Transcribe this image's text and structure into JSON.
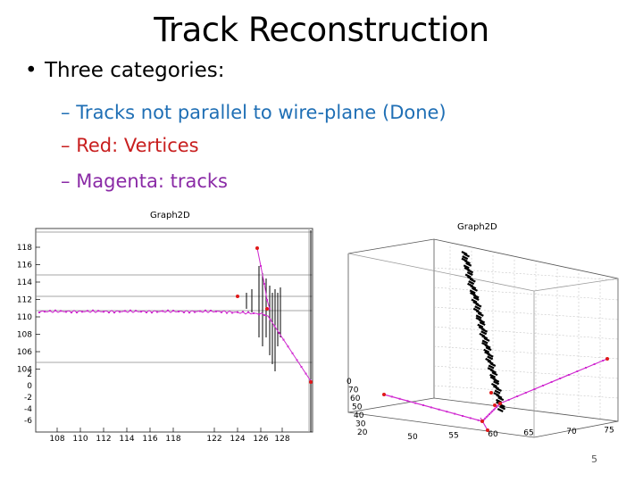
{
  "slide": {
    "title": "Track Reconstruction",
    "bullet": "Three categories:",
    "bullet_marker": "•",
    "subitems": [
      {
        "dash": "–",
        "text": "Tracks not parallel to wire-plane (Done)",
        "color": "#1f6fb5"
      },
      {
        "dash": "–",
        "text": "Red: Vertices",
        "color": "#c81e1e"
      },
      {
        "dash": "–",
        "text": "Magenta: tracks",
        "color": "#8a2aa6"
      }
    ],
    "page_number": "5"
  },
  "chart_data": [
    {
      "type": "scatter",
      "title": "Graph2D",
      "x_ticks": [
        "108",
        "110",
        "112",
        "114",
        "116",
        "118",
        "122",
        "124",
        "126",
        "128"
      ],
      "y_ticks_upper": [
        "118",
        "116",
        "114",
        "112",
        "110",
        "108",
        "106",
        "104"
      ],
      "y_ticks_lower": [
        "2",
        "0",
        "-2",
        "-4",
        "-6"
      ],
      "series": [
        {
          "role": "tracks",
          "color": "#d02ad0"
        },
        {
          "role": "vertices",
          "color": "#e01818"
        },
        {
          "role": "hits",
          "color": "#000000"
        }
      ]
    },
    {
      "type": "scatter",
      "title": "Graph2D",
      "x_ticks": [
        "50",
        "55",
        "60",
        "65",
        "70",
        "75"
      ],
      "y_ticks": [
        "0",
        "70",
        "60",
        "50",
        "40",
        "30",
        "20"
      ],
      "series": [
        {
          "role": "tracks",
          "color": "#d02ad0"
        },
        {
          "role": "vertices",
          "color": "#e01818"
        },
        {
          "role": "hits",
          "color": "#000000"
        }
      ]
    }
  ]
}
